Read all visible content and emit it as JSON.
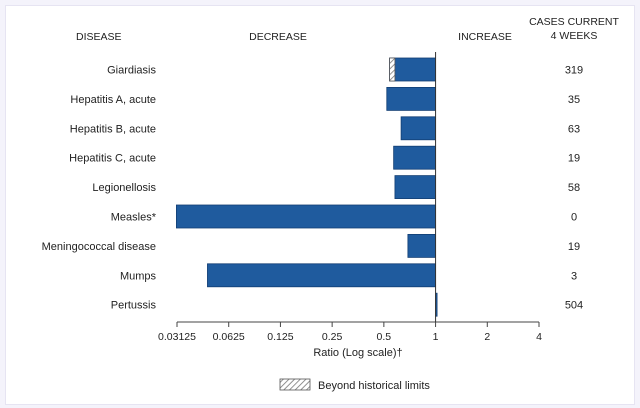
{
  "chart_data": {
    "type": "bar",
    "orientation": "horizontal",
    "x_scale": "log2",
    "xlim": [
      0.03125,
      4
    ],
    "x_ticks": [
      "0.03125",
      "0.0625",
      "0.125",
      "0.25",
      "0.5",
      "1",
      "2",
      "4"
    ],
    "xlabel": "Ratio (Log scale)†",
    "headers": {
      "disease": "DISEASE",
      "decrease": "DECREASE",
      "increase": "INCREASE",
      "cases_line1": "CASES CURRENT",
      "cases_line2": "4 WEEKS"
    },
    "categories": [
      "Giardiasis",
      "Hepatitis A, acute",
      "Hepatitis B, acute",
      "Hepatitis C, acute",
      "Legionellosis",
      "Measles*",
      "Meningococcal disease",
      "Mumps",
      "Pertussis"
    ],
    "values": [
      0.54,
      0.52,
      0.63,
      0.57,
      0.58,
      0.031,
      0.69,
      0.047,
      1.01
    ],
    "cases": [
      "319",
      "35",
      "63",
      "19",
      "58",
      "0",
      "19",
      "3",
      "504"
    ],
    "beyond_historical_limits": [
      {
        "category": "Giardiasis",
        "from": 0.54,
        "to": 0.58
      }
    ],
    "legend": {
      "label": "Beyond historical limits",
      "position": "bottom-center"
    },
    "colors": {
      "bar": "#1f5b9e",
      "bar_edge": "#123e73"
    }
  }
}
